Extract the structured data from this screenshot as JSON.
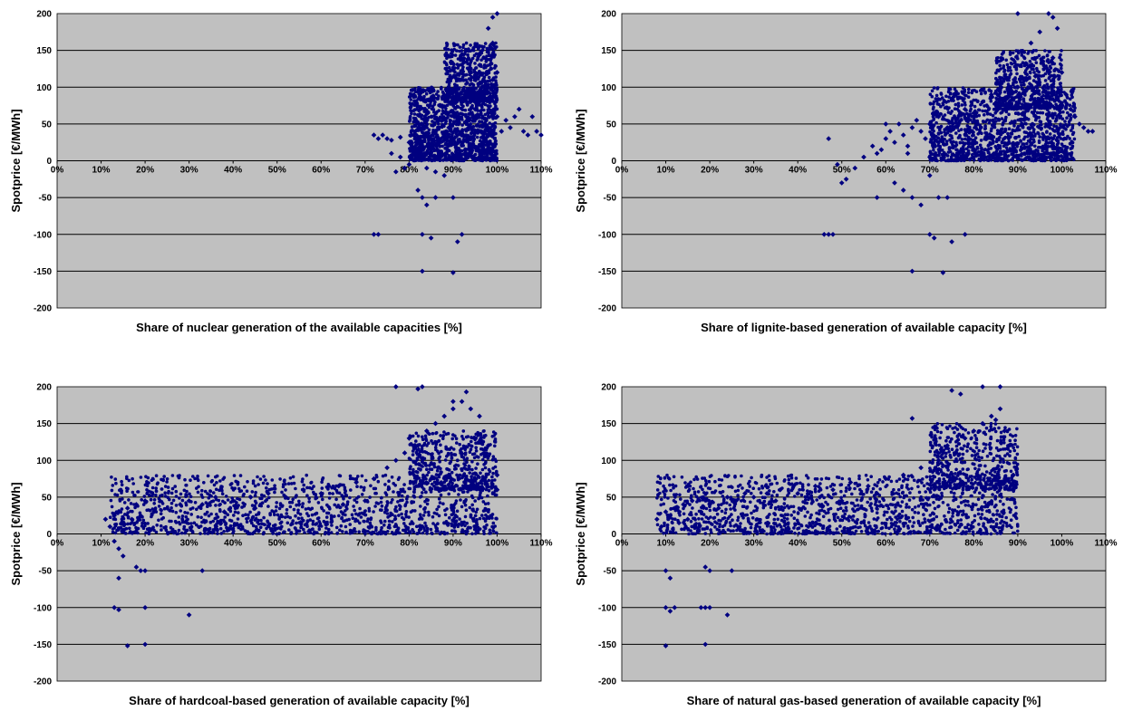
{
  "colors": {
    "plot_background": "#c0c0c0",
    "marker": "#000080",
    "gridline": "#000000"
  },
  "chart_data": [
    {
      "type": "scatter",
      "title": "",
      "xlabel": "Share of nuclear generation of the available capacities  [%]",
      "ylabel": "Spotprice [€/MWh]",
      "xlim": [
        0,
        110
      ],
      "ylim": [
        -200,
        200
      ],
      "x_ticks": [
        "0%",
        "10%",
        "20%",
        "30%",
        "40%",
        "50%",
        "60%",
        "70%",
        "80%",
        "90%",
        "100%",
        "110%"
      ],
      "y_ticks": [
        "200",
        "150",
        "100",
        "50",
        "0",
        "-50",
        "-100",
        "-150",
        "-200"
      ],
      "grid": true,
      "legend": "none",
      "marker_color": "#000080",
      "points": [
        [
          72,
          35
        ],
        [
          73,
          30
        ],
        [
          74,
          35
        ],
        [
          75,
          30
        ],
        [
          76,
          28
        ],
        [
          78,
          32
        ],
        [
          80,
          25
        ],
        [
          81,
          15
        ],
        [
          82,
          5
        ],
        [
          83,
          20
        ],
        [
          84,
          10
        ],
        [
          85,
          30
        ],
        [
          86,
          40
        ],
        [
          87,
          20
        ],
        [
          88,
          35
        ],
        [
          89,
          45
        ],
        [
          90,
          50
        ],
        [
          91,
          55
        ],
        [
          92,
          40
        ],
        [
          93,
          60
        ],
        [
          94,
          65
        ],
        [
          95,
          70
        ],
        [
          96,
          80
        ],
        [
          97,
          90
        ],
        [
          98,
          100
        ],
        [
          99,
          110
        ],
        [
          100,
          120
        ],
        [
          97,
          140
        ],
        [
          98,
          150
        ],
        [
          99,
          160
        ],
        [
          100,
          200
        ],
        [
          99,
          195
        ],
        [
          98,
          180
        ],
        [
          96,
          130
        ],
        [
          95,
          120
        ],
        [
          100,
          60
        ],
        [
          101,
          40
        ],
        [
          102,
          55
        ],
        [
          103,
          45
        ],
        [
          104,
          60
        ],
        [
          105,
          70
        ],
        [
          106,
          40
        ],
        [
          107,
          35
        ],
        [
          108,
          60
        ],
        [
          109,
          40
        ],
        [
          110,
          35
        ],
        [
          82,
          -40
        ],
        [
          83,
          -50
        ],
        [
          84,
          -60
        ],
        [
          86,
          -50
        ],
        [
          90,
          -50
        ],
        [
          91,
          -110
        ],
        [
          92,
          -100
        ],
        [
          83,
          -100
        ],
        [
          85,
          -105
        ],
        [
          72,
          -100
        ],
        [
          73,
          -100
        ],
        [
          83,
          -150
        ],
        [
          90,
          -152
        ],
        [
          88,
          -20
        ],
        [
          86,
          -15
        ],
        [
          84,
          -10
        ],
        [
          80,
          -5
        ],
        [
          79,
          -10
        ],
        [
          77,
          -15
        ],
        [
          76,
          10
        ],
        [
          78,
          5
        ]
      ],
      "dense_regions": [
        {
          "x_range": [
            80,
            100
          ],
          "y_range": [
            0,
            100
          ],
          "density": "very high"
        },
        {
          "x_range": [
            88,
            100
          ],
          "y_range": [
            80,
            160
          ],
          "density": "high"
        }
      ]
    },
    {
      "type": "scatter",
      "title": "",
      "xlabel": "Share of lignite-based generation of available capacity [%]",
      "ylabel": "Spotprice [€/MWh]",
      "xlim": [
        0,
        110
      ],
      "ylim": [
        -200,
        200
      ],
      "x_ticks": [
        "0%",
        "10%",
        "20%",
        "30%",
        "40%",
        "50%",
        "60%",
        "70%",
        "80%",
        "90%",
        "100%",
        "110%"
      ],
      "y_ticks": [
        "200",
        "150",
        "100",
        "50",
        "0",
        "-50",
        "-100",
        "-150",
        "-200"
      ],
      "grid": true,
      "legend": "none",
      "marker_color": "#000080",
      "points": [
        [
          47,
          30
        ],
        [
          49,
          -5
        ],
        [
          50,
          -30
        ],
        [
          51,
          -25
        ],
        [
          53,
          -10
        ],
        [
          55,
          5
        ],
        [
          57,
          20
        ],
        [
          58,
          10
        ],
        [
          59,
          15
        ],
        [
          60,
          30
        ],
        [
          61,
          40
        ],
        [
          62,
          25
        ],
        [
          63,
          50
        ],
        [
          64,
          35
        ],
        [
          65,
          20
        ],
        [
          66,
          45
        ],
        [
          67,
          55
        ],
        [
          68,
          40
        ],
        [
          69,
          30
        ],
        [
          70,
          50
        ],
        [
          72,
          60
        ],
        [
          74,
          45
        ],
        [
          76,
          55
        ],
        [
          78,
          70
        ],
        [
          80,
          65
        ],
        [
          82,
          80
        ],
        [
          84,
          90
        ],
        [
          86,
          85
        ],
        [
          88,
          95
        ],
        [
          90,
          100
        ],
        [
          92,
          110
        ],
        [
          94,
          115
        ],
        [
          96,
          125
        ],
        [
          98,
          140
        ],
        [
          100,
          120
        ],
        [
          101,
          90
        ],
        [
          102,
          70
        ],
        [
          103,
          60
        ],
        [
          104,
          50
        ],
        [
          105,
          45
        ],
        [
          106,
          40
        ],
        [
          107,
          40
        ],
        [
          90,
          200
        ],
        [
          97,
          200
        ],
        [
          98,
          195
        ],
        [
          99,
          180
        ],
        [
          95,
          175
        ],
        [
          93,
          160
        ],
        [
          58,
          -50
        ],
        [
          62,
          -30
        ],
        [
          64,
          -40
        ],
        [
          66,
          -50
        ],
        [
          68,
          -60
        ],
        [
          70,
          -20
        ],
        [
          72,
          -50
        ],
        [
          74,
          -50
        ],
        [
          46,
          -100
        ],
        [
          47,
          -100
        ],
        [
          48,
          -100
        ],
        [
          70,
          -100
        ],
        [
          71,
          -105
        ],
        [
          75,
          -110
        ],
        [
          78,
          -100
        ],
        [
          73,
          -152
        ],
        [
          66,
          -150
        ],
        [
          60,
          50
        ],
        [
          65,
          10
        ],
        [
          70,
          5
        ]
      ],
      "dense_regions": [
        {
          "x_range": [
            70,
            103
          ],
          "y_range": [
            0,
            100
          ],
          "density": "very high"
        },
        {
          "x_range": [
            85,
            100
          ],
          "y_range": [
            70,
            150
          ],
          "density": "high"
        }
      ]
    },
    {
      "type": "scatter",
      "title": "",
      "xlabel": "Share of hardcoal-based generation of available capacity [%]",
      "ylabel": "Spotprice [€/MWh]",
      "xlim": [
        0,
        110
      ],
      "ylim": [
        -200,
        200
      ],
      "x_ticks": [
        "0%",
        "10%",
        "20%",
        "30%",
        "40%",
        "50%",
        "60%",
        "70%",
        "80%",
        "90%",
        "100%",
        "110%"
      ],
      "y_ticks": [
        "200",
        "150",
        "100",
        "50",
        "0",
        "-50",
        "-100",
        "-150",
        "-200"
      ],
      "grid": true,
      "legend": "none",
      "marker_color": "#000080",
      "points": [
        [
          11,
          20
        ],
        [
          12,
          10
        ],
        [
          13,
          25
        ],
        [
          14,
          30
        ],
        [
          15,
          15
        ],
        [
          16,
          35
        ],
        [
          17,
          20
        ],
        [
          18,
          40
        ],
        [
          19,
          25
        ],
        [
          20,
          45
        ],
        [
          22,
          30
        ],
        [
          25,
          35
        ],
        [
          28,
          40
        ],
        [
          30,
          45
        ],
        [
          33,
          40
        ],
        [
          36,
          50
        ],
        [
          40,
          45
        ],
        [
          44,
          50
        ],
        [
          48,
          55
        ],
        [
          52,
          50
        ],
        [
          56,
          60
        ],
        [
          60,
          55
        ],
        [
          64,
          65
        ],
        [
          68,
          70
        ],
        [
          72,
          75
        ],
        [
          75,
          90
        ],
        [
          77,
          100
        ],
        [
          79,
          110
        ],
        [
          80,
          130
        ],
        [
          82,
          120
        ],
        [
          84,
          140
        ],
        [
          86,
          150
        ],
        [
          88,
          160
        ],
        [
          90,
          170
        ],
        [
          92,
          180
        ],
        [
          94,
          170
        ],
        [
          96,
          160
        ],
        [
          98,
          120
        ],
        [
          100,
          80
        ],
        [
          100,
          60
        ],
        [
          77,
          200
        ],
        [
          82,
          197
        ],
        [
          83,
          200
        ],
        [
          93,
          193
        ],
        [
          90,
          180
        ],
        [
          13,
          -10
        ],
        [
          14,
          -20
        ],
        [
          15,
          -30
        ],
        [
          14,
          -60
        ],
        [
          18,
          -45
        ],
        [
          20,
          -50
        ],
        [
          19,
          -50
        ],
        [
          33,
          -50
        ],
        [
          13,
          -100
        ],
        [
          14,
          -103
        ],
        [
          20,
          -100
        ],
        [
          30,
          -110
        ],
        [
          16,
          -152
        ],
        [
          20,
          -150
        ],
        [
          65,
          40
        ],
        [
          70,
          45
        ],
        [
          45,
          35
        ],
        [
          38,
          30
        ],
        [
          55,
          40
        ]
      ],
      "dense_regions": [
        {
          "x_range": [
            12,
            100
          ],
          "y_range": [
            0,
            80
          ],
          "density": "very high"
        },
        {
          "x_range": [
            80,
            100
          ],
          "y_range": [
            60,
            140
          ],
          "density": "high"
        }
      ]
    },
    {
      "type": "scatter",
      "title": "",
      "xlabel": "Share of natural gas-based generation of available capacity [%]",
      "ylabel": "Spotprice [€/MWh]",
      "xlim": [
        0,
        110
      ],
      "ylim": [
        -200,
        200
      ],
      "x_ticks": [
        "0%",
        "10%",
        "20%",
        "30%",
        "40%",
        "50%",
        "60%",
        "70%",
        "80%",
        "90%",
        "100%",
        "110%"
      ],
      "y_ticks": [
        "200",
        "150",
        "100",
        "50",
        "0",
        "-50",
        "-100",
        "-150",
        "-200"
      ],
      "grid": true,
      "legend": "none",
      "marker_color": "#000080",
      "points": [
        [
          8,
          20
        ],
        [
          9,
          10
        ],
        [
          10,
          30
        ],
        [
          11,
          25
        ],
        [
          12,
          35
        ],
        [
          13,
          15
        ],
        [
          14,
          40
        ],
        [
          15,
          20
        ],
        [
          16,
          45
        ],
        [
          18,
          30
        ],
        [
          20,
          40
        ],
        [
          22,
          35
        ],
        [
          24,
          50
        ],
        [
          26,
          45
        ],
        [
          28,
          55
        ],
        [
          30,
          50
        ],
        [
          33,
          55
        ],
        [
          36,
          60
        ],
        [
          40,
          55
        ],
        [
          44,
          65
        ],
        [
          48,
          60
        ],
        [
          52,
          70
        ],
        [
          56,
          65
        ],
        [
          60,
          75
        ],
        [
          64,
          80
        ],
        [
          68,
          90
        ],
        [
          72,
          100
        ],
        [
          74,
          120
        ],
        [
          76,
          110
        ],
        [
          78,
          130
        ],
        [
          80,
          140
        ],
        [
          82,
          150
        ],
        [
          84,
          160
        ],
        [
          86,
          170
        ],
        [
          87,
          140
        ],
        [
          88,
          120
        ],
        [
          89,
          80
        ],
        [
          89,
          60
        ],
        [
          82,
          200
        ],
        [
          86,
          200
        ],
        [
          75,
          195
        ],
        [
          77,
          190
        ],
        [
          10,
          -50
        ],
        [
          11,
          -60
        ],
        [
          19,
          -45
        ],
        [
          20,
          -50
        ],
        [
          25,
          -50
        ],
        [
          10,
          -100
        ],
        [
          11,
          -105
        ],
        [
          12,
          -100
        ],
        [
          18,
          -100
        ],
        [
          19,
          -100
        ],
        [
          20,
          -100
        ],
        [
          24,
          -110
        ],
        [
          10,
          -152
        ],
        [
          19,
          -150
        ],
        [
          66,
          157
        ],
        [
          85,
          155
        ],
        [
          50,
          45
        ],
        [
          58,
          55
        ],
        [
          45,
          50
        ],
        [
          35,
          45
        ]
      ],
      "dense_regions": [
        {
          "x_range": [
            8,
            90
          ],
          "y_range": [
            0,
            80
          ],
          "density": "very high"
        },
        {
          "x_range": [
            70,
            90
          ],
          "y_range": [
            60,
            150
          ],
          "density": "high"
        }
      ]
    }
  ]
}
